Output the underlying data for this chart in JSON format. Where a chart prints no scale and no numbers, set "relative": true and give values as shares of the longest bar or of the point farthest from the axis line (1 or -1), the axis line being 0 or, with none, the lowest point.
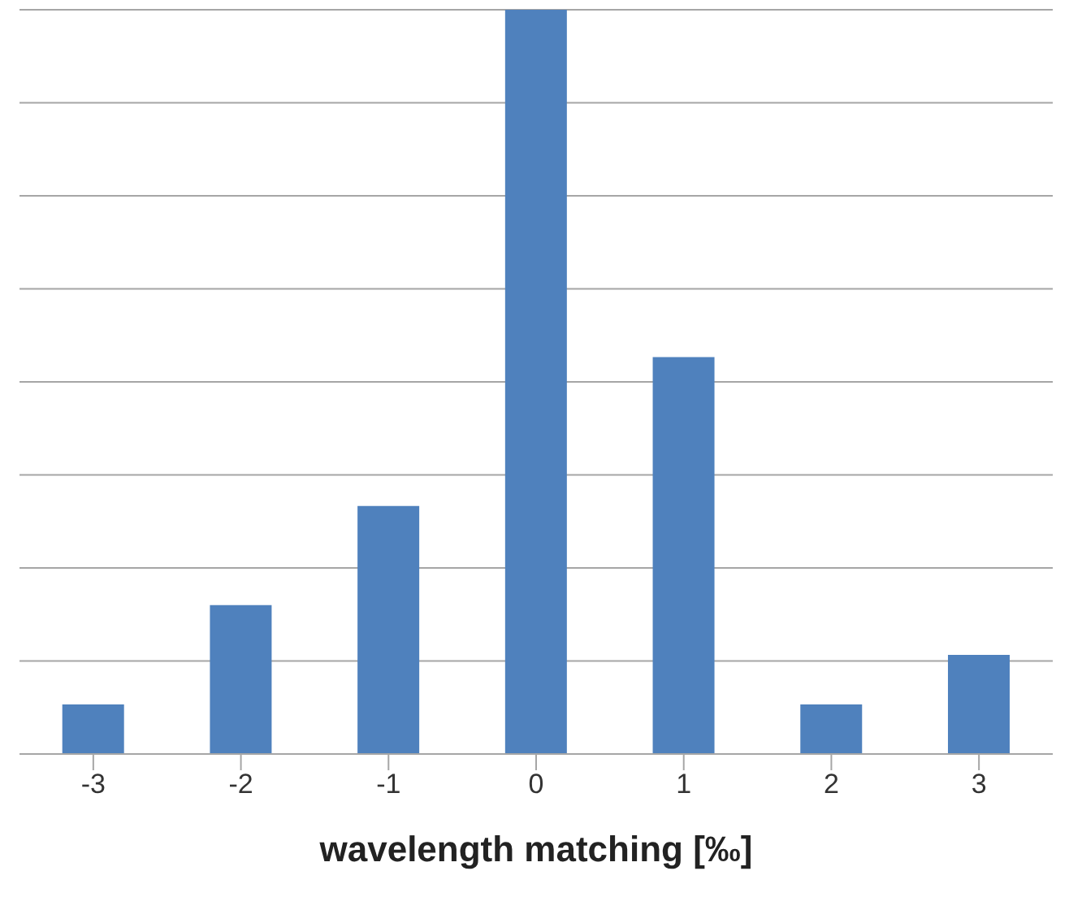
{
  "chart_data": {
    "type": "bar",
    "xlabel": "wavelength matching [‰]",
    "categories": [
      "-3",
      "-2",
      "-1",
      "0",
      "1",
      "2",
      "3"
    ],
    "values": [
      0.0667,
      0.2,
      0.3333,
      1,
      0.5333,
      0.0667,
      0.1333
    ],
    "color": "#4f81bd",
    "relative": true,
    "grid": "y"
  }
}
